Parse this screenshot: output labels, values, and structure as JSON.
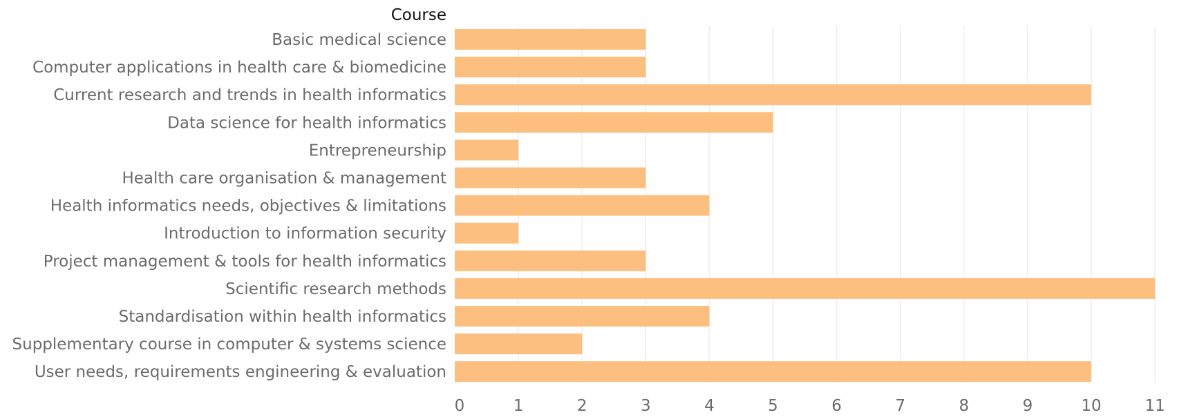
{
  "chart_data": {
    "type": "bar",
    "orientation": "horizontal",
    "row_header": "Course",
    "categories": [
      "Basic medical science",
      "Computer applications in health care & biomedicine",
      "Current research and trends in health informatics",
      "Data science for health informatics",
      "Entrepreneurship",
      "Health care organisation & management",
      "Health informatics needs, objectives & limitations",
      "Introduction to information security",
      "Project management & tools for health informatics",
      "Scientific research methods",
      "Standardisation within health informatics",
      "Supplementary course in computer & systems science",
      "User needs, requirements engineering & evaluation"
    ],
    "values": [
      3,
      3,
      10,
      5,
      1,
      3,
      4,
      1,
      3,
      11,
      4,
      2,
      10
    ],
    "xlim": [
      0,
      11
    ],
    "xticks": [
      "0",
      "1",
      "2",
      "3",
      "4",
      "5",
      "6",
      "7",
      "8",
      "9",
      "10",
      "11"
    ],
    "grid": "vertical",
    "bar_color": "#fdbf80"
  }
}
